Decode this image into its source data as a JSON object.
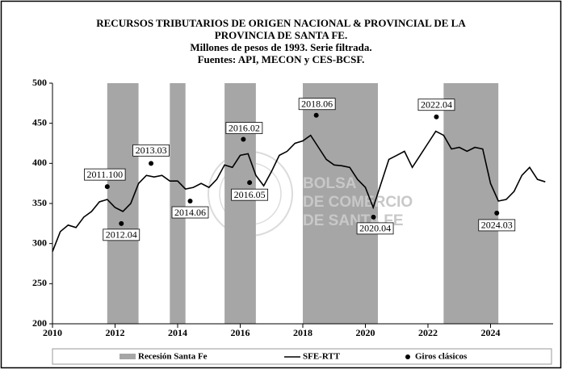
{
  "chart_data": {
    "type": "line",
    "title": [
      "RECURSOS TRIBUTARIOS DE ORIGEN NACIONAL & PROVINCIAL DE LA",
      "PROVINCIA DE SANTA FE.",
      "Millones de pesos de 1993. Serie filtrada.",
      "Fuentes: API, MECON y CES-BCSF."
    ],
    "xlim": [
      2010,
      2026
    ],
    "xticks": [
      2010,
      2012,
      2014,
      2016,
      2018,
      2020,
      2022,
      2024
    ],
    "ylim": [
      200,
      500
    ],
    "yticks": [
      200,
      250,
      300,
      350,
      400,
      450,
      500
    ],
    "bands": {
      "name": "Recesión Santa Fe",
      "color": "#a6a6a6",
      "ranges": [
        [
          2011.75,
          2012.75
        ],
        [
          2013.75,
          2014.25
        ],
        [
          2015.5,
          2016.5
        ],
        [
          2018.0,
          2020.4
        ],
        [
          2022.5,
          2024.25
        ]
      ]
    },
    "series": [
      {
        "name": "SFE-RTT",
        "color": "#000000",
        "x": [
          2010,
          2010.25,
          2010.5,
          2010.75,
          2011,
          2011.25,
          2011.5,
          2011.75,
          2012,
          2012.25,
          2012.5,
          2012.75,
          2013,
          2013.25,
          2013.5,
          2013.75,
          2014,
          2014.25,
          2014.5,
          2014.75,
          2015,
          2015.25,
          2015.5,
          2015.75,
          2016,
          2016.25,
          2016.5,
          2016.75,
          2017,
          2017.25,
          2017.5,
          2017.75,
          2018,
          2018.25,
          2018.5,
          2018.75,
          2019,
          2019.25,
          2019.5,
          2019.75,
          2020,
          2020.25,
          2020.5,
          2020.75,
          2021,
          2021.25,
          2021.5,
          2021.75,
          2022,
          2022.25,
          2022.5,
          2022.75,
          2023,
          2023.25,
          2023.5,
          2023.75,
          2024,
          2024.25,
          2024.5,
          2024.75,
          2025,
          2025.25,
          2025.5,
          2025.75
        ],
        "values": [
          290,
          315,
          323,
          320,
          333,
          340,
          352,
          355,
          345,
          340,
          350,
          375,
          385,
          383,
          385,
          378,
          378,
          368,
          370,
          375,
          370,
          380,
          398,
          395,
          410,
          412,
          385,
          372,
          390,
          410,
          415,
          425,
          428,
          435,
          420,
          405,
          398,
          397,
          395,
          380,
          370,
          345,
          375,
          405,
          410,
          415,
          395,
          410,
          425,
          440,
          435,
          418,
          420,
          415,
          420,
          418,
          375,
          353,
          355,
          365,
          385,
          395,
          380,
          377
        ]
      }
    ],
    "points": {
      "name": "Giros clásicos",
      "color": "#000000",
      "x": [
        2011.75,
        2012.2,
        2013.15,
        2014.4,
        2016.1,
        2016.3,
        2018.43,
        2020.26,
        2022.27,
        2024.2
      ],
      "values": [
        371,
        325,
        400,
        353,
        430,
        376,
        460,
        333,
        458,
        338
      ],
      "labels": [
        "2011.100",
        "2012.04",
        "2013.03",
        "2014.06",
        "2016.02",
        "2016.05",
        "2018.06",
        "2020.04",
        "2022.04",
        "2024.03"
      ]
    },
    "watermark": [
      "BOLSA",
      "DE COMERCIO",
      "DE SANTA FE"
    ]
  }
}
